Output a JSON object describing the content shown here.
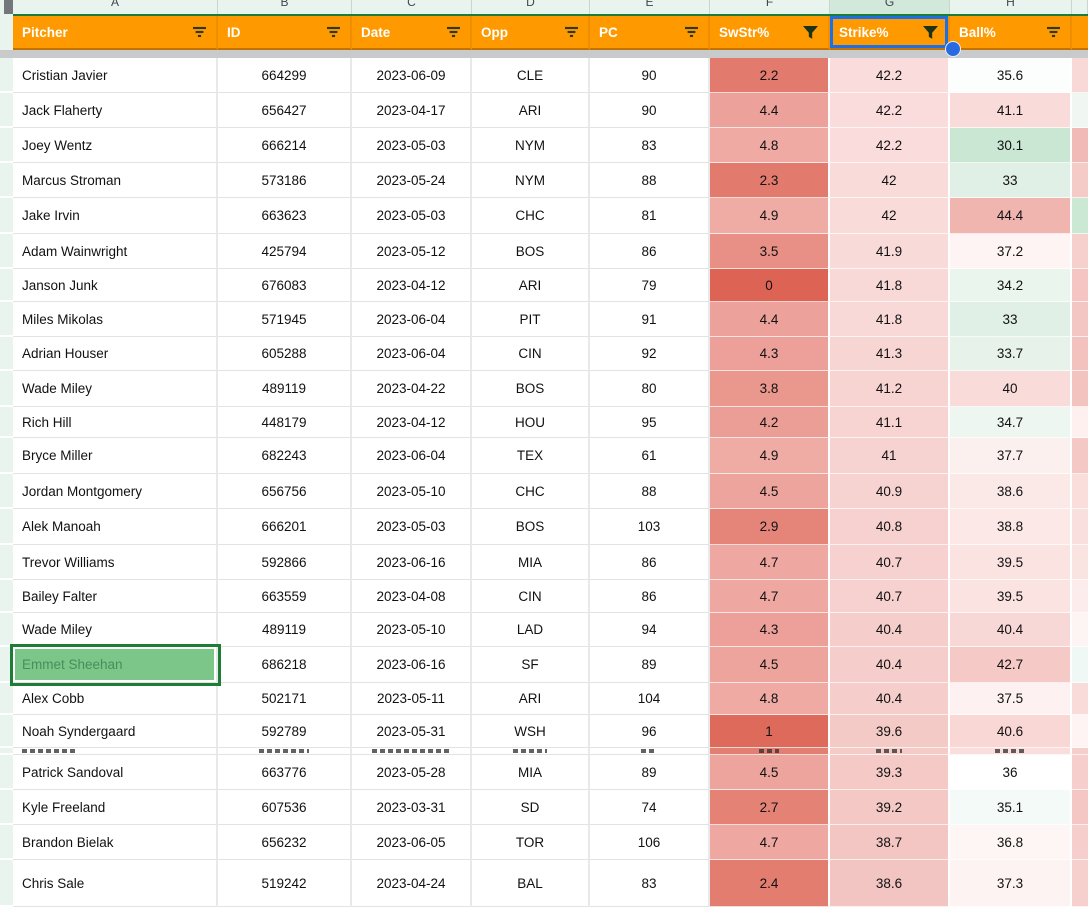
{
  "sheet": {
    "column_letters": [
      "A",
      "B",
      "C",
      "D",
      "E",
      "F",
      "G",
      "H"
    ],
    "columns": [
      {
        "label": "Pitcher",
        "filter": "lines",
        "selected": false
      },
      {
        "label": "ID",
        "filter": "lines",
        "selected": false
      },
      {
        "label": "Date",
        "filter": "lines",
        "selected": false
      },
      {
        "label": "Opp",
        "filter": "lines",
        "selected": false
      },
      {
        "label": "PC",
        "filter": "lines",
        "selected": false
      },
      {
        "label": "SwStr%",
        "filter": "funnel",
        "selected": false
      },
      {
        "label": "Strike%",
        "filter": "funnel",
        "selected": true
      },
      {
        "label": "Ball%",
        "filter": "lines",
        "selected": false
      }
    ],
    "rows": [
      {
        "pitcher": "Cristian Javier",
        "id": "664299",
        "date": "2023-06-09",
        "opp": "CLE",
        "pc": "90",
        "swstr": "2.2",
        "strike": "42.2",
        "ball": "35.6",
        "colors": {
          "swstr": "#e27a6d",
          "strike": "#f9dcdb",
          "ball": "#fcfefd",
          "extra": "#f8d9d8"
        }
      },
      {
        "pitcher": "Jack Flaherty",
        "id": "656427",
        "date": "2023-04-17",
        "opp": "ARI",
        "pc": "90",
        "swstr": "4.4",
        "strike": "42.2",
        "ball": "41.1",
        "colors": {
          "swstr": "#eca29a",
          "strike": "#f9dcdb",
          "ball": "#f9dbd9",
          "extra": "#f0f7f3"
        }
      },
      {
        "pitcher": "Joey Wentz",
        "id": "666214",
        "date": "2023-05-03",
        "opp": "NYM",
        "pc": "83",
        "swstr": "4.8",
        "strike": "42.2",
        "ball": "30.1",
        "colors": {
          "swstr": "#eeaaa3",
          "strike": "#f9dcdb",
          "ball": "#c9e7d3",
          "extra": "#f2bab7"
        }
      },
      {
        "pitcher": "Marcus Stroman",
        "id": "573186",
        "date": "2023-05-24",
        "opp": "NYM",
        "pc": "88",
        "swstr": "2.3",
        "strike": "42",
        "ball": "33",
        "colors": {
          "swstr": "#e27b6e",
          "strike": "#f9dbda",
          "ball": "#e1f0e7",
          "extra": "#f5cbc8"
        }
      },
      {
        "pitcher": "Jake Irvin",
        "id": "663623",
        "date": "2023-05-03",
        "opp": "CHC",
        "pc": "81",
        "swstr": "4.9",
        "strike": "42",
        "ball": "44.4",
        "colors": {
          "swstr": "#efaca5",
          "strike": "#f9dbda",
          "ball": "#f1b5b0",
          "extra": "#cbe8d5"
        }
      },
      {
        "pitcher": "Adam Wainwright",
        "id": "425794",
        "date": "2023-05-12",
        "opp": "BOS",
        "pc": "86",
        "swstr": "3.5",
        "strike": "41.9",
        "ball": "37.2",
        "colors": {
          "swstr": "#e89086",
          "strike": "#f8dad9",
          "ball": "#fdf4f3",
          "extra": "#f6d0cd"
        }
      },
      {
        "pitcher": "Janson Junk",
        "id": "676083",
        "date": "2023-04-12",
        "opp": "ARI",
        "pc": "79",
        "swstr": "0",
        "strike": "41.8",
        "ball": "34.2",
        "colors": {
          "swstr": "#dd6355",
          "strike": "#f8d9d8",
          "ball": "#eaf5ee",
          "extra": "#f4c5c2"
        }
      },
      {
        "pitcher": "Miles Mikolas",
        "id": "571945",
        "date": "2023-06-04",
        "opp": "PIT",
        "pc": "91",
        "swstr": "4.4",
        "strike": "41.8",
        "ball": "33",
        "colors": {
          "swstr": "#eca29a",
          "strike": "#f8d9d8",
          "ball": "#e1f0e7",
          "extra": "#f4c6c3"
        }
      },
      {
        "pitcher": "Adrian Houser",
        "id": "605288",
        "date": "2023-06-04",
        "opp": "CIN",
        "pc": "92",
        "swstr": "4.3",
        "strike": "41.3",
        "ball": "33.7",
        "colors": {
          "swstr": "#eca099",
          "strike": "#f7d5d3",
          "ball": "#e7f3ea",
          "extra": "#f3c2bf"
        }
      },
      {
        "pitcher": "Wade Miley",
        "id": "489119",
        "date": "2023-04-22",
        "opp": "BOS",
        "pc": "80",
        "swstr": "3.8",
        "strike": "41.2",
        "ball": "40",
        "colors": {
          "swstr": "#ea978e",
          "strike": "#f7d4d2",
          "ball": "#f9dcda",
          "extra": "#f3c3c0"
        }
      },
      {
        "pitcher": "Rich Hill",
        "id": "448179",
        "date": "2023-04-12",
        "opp": "HOU",
        "pc": "95",
        "swstr": "4.2",
        "strike": "41.1",
        "ball": "34.7",
        "colors": {
          "swstr": "#eb9e96",
          "strike": "#f7d4d2",
          "ball": "#eef6f1",
          "extra": "#fdf0ef"
        }
      },
      {
        "pitcher": "Bryce Miller",
        "id": "682243",
        "date": "2023-06-04",
        "opp": "TEX",
        "pc": "61",
        "swstr": "4.9",
        "strike": "41",
        "ball": "37.7",
        "colors": {
          "swstr": "#efaca5",
          "strike": "#f6d2d0",
          "ball": "#fcf0ef",
          "extra": "#f4c8c5"
        }
      },
      {
        "pitcher": "Jordan Montgomery",
        "id": "656756",
        "date": "2023-05-10",
        "opp": "CHC",
        "pc": "88",
        "swstr": "4.5",
        "strike": "40.9",
        "ball": "38.6",
        "colors": {
          "swstr": "#eda49d",
          "strike": "#f6d2d0",
          "ball": "#fbe9e8",
          "extra": "#f9dedc"
        }
      },
      {
        "pitcher": "Alek Manoah",
        "id": "666201",
        "date": "2023-05-03",
        "opp": "BOS",
        "pc": "103",
        "swstr": "2.9",
        "strike": "40.8",
        "ball": "38.8",
        "colors": {
          "swstr": "#e58579",
          "strike": "#f6d1cf",
          "ball": "#fbe8e7",
          "extra": "#f9dfdd"
        }
      },
      {
        "pitcher": "Trevor Williams",
        "id": "592866",
        "date": "2023-06-16",
        "opp": "MIA",
        "pc": "86",
        "swstr": "4.7",
        "strike": "40.7",
        "ball": "39.5",
        "colors": {
          "swstr": "#eea8a1",
          "strike": "#f6d1cf",
          "ball": "#fae3e1",
          "extra": "#fae4e2"
        }
      },
      {
        "pitcher": "Bailey Falter",
        "id": "663559",
        "date": "2023-04-08",
        "opp": "CIN",
        "pc": "86",
        "swstr": "4.7",
        "strike": "40.7",
        "ball": "39.5",
        "colors": {
          "swstr": "#eea8a1",
          "strike": "#f6d1cf",
          "ball": "#fae3e1",
          "extra": "#fcedec"
        }
      },
      {
        "pitcher": "Wade Miley",
        "id": "489119",
        "date": "2023-05-10",
        "opp": "LAD",
        "pc": "94",
        "swstr": "4.3",
        "strike": "40.4",
        "ball": "40.4",
        "colors": {
          "swstr": "#eca099",
          "strike": "#f5cecc",
          "ball": "#f8d8d6",
          "extra": "#fdf5f4"
        }
      },
      {
        "pitcher": "Emmet Sheehan",
        "id": "686218",
        "date": "2023-06-16",
        "opp": "SF",
        "pc": "89",
        "swstr": "4.5",
        "strike": "40.4",
        "ball": "42.7",
        "selected": true,
        "colors": {
          "swstr": "#eda49d",
          "strike": "#f5cecc",
          "ball": "#f5c9c6",
          "extra": "#eff8f4"
        }
      },
      {
        "pitcher": "Alex Cobb",
        "id": "502171",
        "date": "2023-05-11",
        "opp": "ARI",
        "pc": "104",
        "swstr": "4.8",
        "strike": "40.4",
        "ball": "37.5",
        "colors": {
          "swstr": "#eeaaa3",
          "strike": "#f5cecc",
          "ball": "#fdf2f1",
          "extra": "#f9dcda"
        }
      },
      {
        "pitcher": "Noah Syndergaard",
        "id": "592789",
        "date": "2023-05-31",
        "opp": "WSH",
        "pc": "96",
        "swstr": "1",
        "strike": "39.6",
        "ball": "40.6",
        "colors": {
          "swstr": "#de6a5c",
          "strike": "#f4cac7",
          "ball": "#f8d7d5",
          "extra": "#fdf4f3"
        }
      },
      {
        "pitcher": "Patrick Sandoval",
        "id": "663776",
        "date": "2023-05-28",
        "opp": "MIA",
        "pc": "89",
        "swstr": "4.5",
        "strike": "39.3",
        "ball": "36",
        "colors": {
          "swstr": "#eda49d",
          "strike": "#f4c9c6",
          "ball": "#ffffff",
          "extra": "#f6cecb"
        }
      },
      {
        "pitcher": "Kyle Freeland",
        "id": "607536",
        "date": "2023-03-31",
        "opp": "SD",
        "pc": "74",
        "swstr": "2.7",
        "strike": "39.2",
        "ball": "35.1",
        "colors": {
          "swstr": "#e48276",
          "strike": "#f4c8c5",
          "ball": "#f4faf7",
          "extra": "#f4c7c4"
        }
      },
      {
        "pitcher": "Brandon Bielak",
        "id": "656232",
        "date": "2023-06-05",
        "opp": "TOR",
        "pc": "106",
        "swstr": "4.7",
        "strike": "38.7",
        "ball": "36.8",
        "colors": {
          "swstr": "#eea8a1",
          "strike": "#f3c6c3",
          "ball": "#fdf6f5",
          "extra": "#f6cfcc"
        }
      },
      {
        "pitcher": "Chris Sale",
        "id": "519242",
        "date": "2023-04-24",
        "opp": "BAL",
        "pc": "83",
        "swstr": "2.4",
        "strike": "38.6",
        "ball": "37.3",
        "colors": {
          "swstr": "#e37d70",
          "strike": "#f3c5c2",
          "ball": "#fdf3f2",
          "extra": "#f6d0cd"
        }
      }
    ],
    "hidden_row_sliver": {
      "after_row_index": 19,
      "cell_backgrounds": {
        "swstr": "#e07f72",
        "strike": "#f5cbc8",
        "ball": "#fadedd",
        "extra": "#f6cecb"
      }
    },
    "selected_cell": {
      "row_index": 17,
      "column": "pitcher",
      "value": "Emmet Sheehan"
    },
    "ui_colors": {
      "header_bg": "#ff9900",
      "header_text": "#ffffff",
      "header_divider": "#ef8e00",
      "header_bottom_line": "#c47200",
      "filter_range_green_line": "#1a7d39",
      "selection_blue_border": "#1d6fe8",
      "collaborator_dot_blue": "#2a6ae0",
      "collaborator_green_border": "#1e7d34",
      "selected_cell_fill": "#7cc68a",
      "selected_cell_text": "#44905a",
      "frozen_divider_gray": "#c9cacb",
      "letter_strip_bg": "#e9f4ee",
      "letter_strip_selected": "#d2e8db",
      "gridline": "#e3e3e3"
    }
  }
}
